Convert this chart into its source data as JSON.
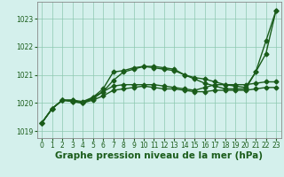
{
  "x": [
    0,
    1,
    2,
    3,
    4,
    5,
    6,
    7,
    8,
    9,
    10,
    11,
    12,
    13,
    14,
    15,
    16,
    17,
    18,
    19,
    20,
    21,
    22,
    23
  ],
  "lines": [
    {
      "y": [
        1019.3,
        1019.8,
        1020.1,
        1020.1,
        1020.0,
        1020.2,
        1020.5,
        1021.1,
        1021.15,
        1021.25,
        1021.3,
        1021.3,
        1021.25,
        1021.2,
        1021.0,
        1020.9,
        1020.85,
        1020.75,
        1020.65,
        1020.6,
        1020.55,
        1021.1,
        1021.75,
        1023.3
      ],
      "marker": "D",
      "markersize": 2.5,
      "linewidth": 1.0
    },
    {
      "y": [
        1019.3,
        1019.8,
        1020.1,
        1020.05,
        1020.0,
        1020.15,
        1020.4,
        1020.8,
        1021.1,
        1021.2,
        1021.3,
        1021.25,
        1021.2,
        1021.15,
        1021.0,
        1020.85,
        1020.7,
        1020.6,
        1020.5,
        1020.5,
        1020.5,
        1021.1,
        1022.2,
        1023.3
      ],
      "marker": "D",
      "markersize": 2.5,
      "linewidth": 1.0
    },
    {
      "y": [
        1019.3,
        1019.8,
        1020.1,
        1020.05,
        1020.0,
        1020.1,
        1020.25,
        1020.45,
        1020.5,
        1020.55,
        1020.6,
        1020.55,
        1020.5,
        1020.5,
        1020.45,
        1020.4,
        1020.4,
        1020.45,
        1020.45,
        1020.45,
        1020.45,
        1020.5,
        1020.55,
        1020.55
      ],
      "marker": "D",
      "markersize": 2.5,
      "linewidth": 1.0
    },
    {
      "y": [
        1019.3,
        1019.8,
        1020.1,
        1020.1,
        1020.05,
        1020.2,
        1020.4,
        1020.6,
        1020.65,
        1020.65,
        1020.65,
        1020.65,
        1020.6,
        1020.55,
        1020.5,
        1020.45,
        1020.55,
        1020.65,
        1020.65,
        1020.65,
        1020.65,
        1020.7,
        1020.75,
        1020.75
      ],
      "marker": "D",
      "markersize": 2.5,
      "linewidth": 1.0
    }
  ],
  "line_color": "#1a5c1a",
  "bg_color": "#d4f0ec",
  "grid_color": "#8dc8b0",
  "xlabel": "Graphe pression niveau de la mer (hPa)",
  "xlabel_fontsize": 7.5,
  "xlim": [
    -0.5,
    23.5
  ],
  "ylim": [
    1018.75,
    1023.6
  ],
  "yticks": [
    1019,
    1020,
    1021,
    1022,
    1023
  ],
  "xticks": [
    0,
    1,
    2,
    3,
    4,
    5,
    6,
    7,
    8,
    9,
    10,
    11,
    12,
    13,
    14,
    15,
    16,
    17,
    18,
    19,
    20,
    21,
    22,
    23
  ],
  "tick_fontsize": 5.5,
  "figsize": [
    3.2,
    2.0
  ],
  "dpi": 100
}
